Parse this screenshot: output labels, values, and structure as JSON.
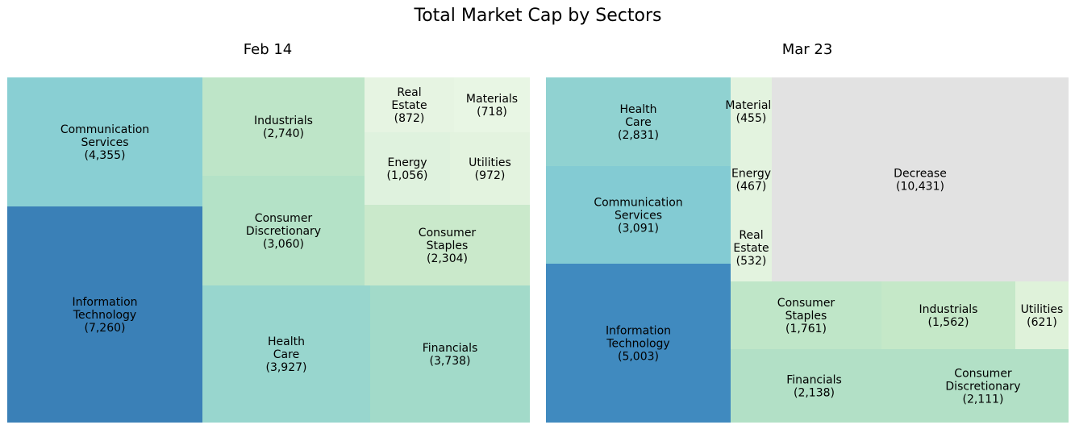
{
  "chart_data": {
    "type": "treemap",
    "title": "Total Market Cap by Sectors",
    "panels": [
      {
        "subtitle": "Feb 14",
        "cells": [
          {
            "label": "Communication Services",
            "value": "4,355",
            "color": "#89cfd3"
          },
          {
            "label": "Information Technology",
            "value": "7,260",
            "color": "#3a80b7"
          },
          {
            "label": "Industrials",
            "value": "2,740",
            "color": "#bee5c8"
          },
          {
            "label": "Consumer Discretionary",
            "value": "3,060",
            "color": "#b4e2c7"
          },
          {
            "label": "Health Care",
            "value": "3,927",
            "color": "#98d6ce"
          },
          {
            "label": "Real Estate",
            "value": "872",
            "color": "#e6f4e2"
          },
          {
            "label": "Materials",
            "value": "718",
            "color": "#e8f6e4"
          },
          {
            "label": "Energy",
            "value": "1,056",
            "color": "#dff2de"
          },
          {
            "label": "Utilities",
            "value": "972",
            "color": "#e3f3df"
          },
          {
            "label": "Consumer Staples",
            "value": "2,304",
            "color": "#cae9cb"
          },
          {
            "label": "Financials",
            "value": "3,738",
            "color": "#a2dac9"
          }
        ]
      },
      {
        "subtitle": "Mar 23",
        "cells": [
          {
            "label": "Health Care",
            "value": "2,831",
            "color": "#90d2d1"
          },
          {
            "label": "Communication Services",
            "value": "3,091",
            "color": "#83cbd3"
          },
          {
            "label": "Information Technology",
            "value": "5,003",
            "color": "#408abf"
          },
          {
            "label": "Materials",
            "value": "455",
            "color": "#e3f3df"
          },
          {
            "label": "Energy",
            "value": "467",
            "color": "#e3f3df"
          },
          {
            "label": "Real Estate",
            "value": "532",
            "color": "#e3f3df"
          },
          {
            "label": "Decrease",
            "value": "10,431",
            "color": "#e2e2e2"
          },
          {
            "label": "Consumer Staples",
            "value": "1,761",
            "color": "#bfe6c8"
          },
          {
            "label": "Industrials",
            "value": "1,562",
            "color": "#c5e8c8"
          },
          {
            "label": "Utilities",
            "value": "621",
            "color": "#dff2da"
          },
          {
            "label": "Financials",
            "value": "2,138",
            "color": "#b2e0c6"
          },
          {
            "label": "Consumer Discretionary",
            "value": "2,111",
            "color": "#b2e0c6"
          }
        ]
      }
    ]
  }
}
